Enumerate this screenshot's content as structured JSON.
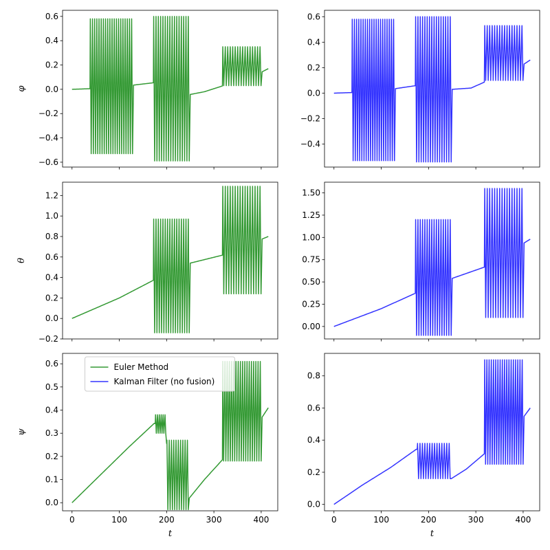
{
  "chart_data": [
    {
      "id": "phi-euler",
      "type": "line",
      "xlabel": "",
      "ylabel": "φ",
      "xlim": [
        -20,
        435
      ],
      "ylim": [
        -0.64,
        0.65
      ],
      "xticks": [
        0,
        100,
        200,
        300,
        400
      ],
      "xtick_labels_visible": false,
      "yticks": [
        -0.6,
        -0.4,
        -0.2,
        0.0,
        0.2,
        0.4,
        0.6
      ],
      "ytick_labels": [
        "−0.6",
        "−0.4",
        "−0.2",
        "0.0",
        "0.2",
        "0.4",
        "0.6"
      ],
      "series": [
        {
          "name": "Euler Method",
          "color": "#339933",
          "baseline": [
            [
              0,
              0
            ],
            [
              40,
              0.005
            ],
            [
              120,
              0.03
            ],
            [
              175,
              0.055
            ],
            [
              215,
              0.07
            ],
            [
              240,
              -0.05
            ],
            [
              280,
              -0.02
            ],
            [
              320,
              0.03
            ],
            [
              370,
              0.08
            ],
            [
              415,
              0.17
            ]
          ],
          "bursts": [
            {
              "start": 38,
              "end": 130,
              "count": 20,
              "hi": 0.58,
              "lo": -0.53
            },
            {
              "start": 172,
              "end": 250,
              "count": 16,
              "hi": 0.6,
              "lo": -0.59
            },
            {
              "start": 318,
              "end": 402,
              "count": 16,
              "hi": 0.35,
              "lo": 0.03
            }
          ]
        }
      ]
    },
    {
      "id": "phi-kalman",
      "type": "line",
      "xlabel": "",
      "ylabel": "",
      "xlim": [
        -20,
        435
      ],
      "ylim": [
        -0.58,
        0.65
      ],
      "xticks": [
        0,
        100,
        200,
        300,
        400
      ],
      "xtick_labels_visible": false,
      "yticks": [
        -0.4,
        -0.2,
        0.0,
        0.2,
        0.4,
        0.6
      ],
      "ytick_labels": [
        "−0.4",
        "−0.2",
        "0.0",
        "0.2",
        "0.4",
        "0.6"
      ],
      "series": [
        {
          "name": "Kalman Filter (no fusion)",
          "color": "#3333ff",
          "baseline": [
            [
              0,
              0
            ],
            [
              40,
              0.005
            ],
            [
              120,
              0.03
            ],
            [
              175,
              0.06
            ],
            [
              215,
              0.07
            ],
            [
              250,
              0.03
            ],
            [
              290,
              0.04
            ],
            [
              320,
              0.09
            ],
            [
              370,
              0.15
            ],
            [
              415,
              0.26
            ]
          ],
          "bursts": [
            {
              "start": 38,
              "end": 130,
              "count": 20,
              "hi": 0.58,
              "lo": -0.53
            },
            {
              "start": 172,
              "end": 250,
              "count": 16,
              "hi": 0.6,
              "lo": -0.54
            },
            {
              "start": 318,
              "end": 402,
              "count": 16,
              "hi": 0.53,
              "lo": 0.1
            }
          ]
        }
      ]
    },
    {
      "id": "theta-euler",
      "type": "line",
      "xlabel": "",
      "ylabel": "θ",
      "xlim": [
        -20,
        435
      ],
      "ylim": [
        -0.2,
        1.33
      ],
      "xticks": [
        0,
        100,
        200,
        300,
        400
      ],
      "xtick_labels_visible": false,
      "yticks": [
        -0.2,
        0.0,
        0.2,
        0.4,
        0.6,
        0.8,
        1.0,
        1.2
      ],
      "ytick_labels": [
        "−0.2",
        "0.0",
        "0.2",
        "0.4",
        "0.6",
        "0.8",
        "1.0",
        "1.2"
      ],
      "series": [
        {
          "name": "Euler Method",
          "color": "#339933",
          "baseline": [
            [
              0,
              0
            ],
            [
              100,
              0.2
            ],
            [
              175,
              0.38
            ],
            [
              250,
              0.54
            ],
            [
              320,
              0.62
            ],
            [
              415,
              0.8
            ]
          ],
          "bursts": [
            {
              "start": 172,
              "end": 250,
              "count": 16,
              "hi": 0.97,
              "lo": -0.14
            },
            {
              "start": 318,
              "end": 402,
              "count": 16,
              "hi": 1.29,
              "lo": 0.24
            }
          ]
        }
      ]
    },
    {
      "id": "theta-kalman",
      "type": "line",
      "xlabel": "",
      "ylabel": "",
      "xlim": [
        -20,
        435
      ],
      "ylim": [
        -0.14,
        1.62
      ],
      "xticks": [
        0,
        100,
        200,
        300,
        400
      ],
      "xtick_labels_visible": false,
      "yticks": [
        0.0,
        0.25,
        0.5,
        0.75,
        1.0,
        1.25,
        1.5
      ],
      "ytick_labels": [
        "0.00",
        "0.25",
        "0.50",
        "0.75",
        "1.00",
        "1.25",
        "1.50"
      ],
      "series": [
        {
          "name": "Kalman Filter (no fusion)",
          "color": "#3333ff",
          "baseline": [
            [
              0,
              0
            ],
            [
              100,
              0.2
            ],
            [
              175,
              0.38
            ],
            [
              250,
              0.54
            ],
            [
              320,
              0.67
            ],
            [
              415,
              0.98
            ]
          ],
          "bursts": [
            {
              "start": 172,
              "end": 250,
              "count": 16,
              "hi": 1.2,
              "lo": -0.1
            },
            {
              "start": 318,
              "end": 402,
              "count": 16,
              "hi": 1.55,
              "lo": 0.1
            }
          ]
        }
      ]
    },
    {
      "id": "psi-euler",
      "type": "line",
      "xlabel": "t",
      "ylabel": "ψ",
      "xlim": [
        -20,
        435
      ],
      "ylim": [
        -0.035,
        0.645
      ],
      "xticks": [
        0,
        100,
        200,
        300,
        400
      ],
      "xtick_labels_visible": true,
      "xtick_labels": [
        "0",
        "100",
        "200",
        "300",
        "400"
      ],
      "yticks": [
        0.0,
        0.1,
        0.2,
        0.3,
        0.4,
        0.5,
        0.6
      ],
      "ytick_labels": [
        "0.0",
        "0.1",
        "0.2",
        "0.3",
        "0.4",
        "0.5",
        "0.6"
      ],
      "legend": {
        "placement": "upper-center",
        "entries": [
          {
            "label": "Euler Method",
            "color": "#339933"
          },
          {
            "label": "Kalman Filter (no fusion)",
            "color": "#3333ff"
          }
        ]
      },
      "series": [
        {
          "name": "Euler Method",
          "color": "#339933",
          "baseline": [
            [
              0,
              0
            ],
            [
              60,
              0.12
            ],
            [
              120,
              0.24
            ],
            [
              175,
              0.345
            ],
            [
              210,
              0.22
            ],
            [
              248,
              0.02
            ],
            [
              280,
              0.1
            ],
            [
              320,
              0.19
            ],
            [
              370,
              0.27
            ],
            [
              415,
              0.41
            ]
          ],
          "bursts": [
            {
              "start": 176,
              "end": 200,
              "count": 6,
              "hi": 0.38,
              "lo": 0.3
            },
            {
              "start": 200,
              "end": 248,
              "count": 10,
              "hi": 0.27,
              "lo": -0.03
            },
            {
              "start": 318,
              "end": 402,
              "count": 18,
              "hi": 0.61,
              "lo": 0.18
            }
          ]
        }
      ]
    },
    {
      "id": "psi-kalman",
      "type": "line",
      "xlabel": "t",
      "ylabel": "",
      "xlim": [
        -20,
        435
      ],
      "ylim": [
        -0.04,
        0.94
      ],
      "xticks": [
        0,
        100,
        200,
        300,
        400
      ],
      "xtick_labels_visible": true,
      "xtick_labels": [
        "0",
        "100",
        "200",
        "300",
        "400"
      ],
      "yticks": [
        0.0,
        0.2,
        0.4,
        0.6,
        0.8
      ],
      "ytick_labels": [
        "0.0",
        "0.2",
        "0.4",
        "0.6",
        "0.8"
      ],
      "series": [
        {
          "name": "Kalman Filter (no fusion)",
          "color": "#3333ff",
          "baseline": [
            [
              0,
              0
            ],
            [
              60,
              0.12
            ],
            [
              120,
              0.23
            ],
            [
              175,
              0.345
            ],
            [
              210,
              0.26
            ],
            [
              248,
              0.16
            ],
            [
              280,
              0.22
            ],
            [
              320,
              0.32
            ],
            [
              370,
              0.42
            ],
            [
              415,
              0.6
            ]
          ],
          "bursts": [
            {
              "start": 176,
              "end": 248,
              "count": 14,
              "hi": 0.38,
              "lo": 0.16
            },
            {
              "start": 318,
              "end": 402,
              "count": 18,
              "hi": 0.9,
              "lo": 0.25
            }
          ]
        }
      ]
    }
  ]
}
